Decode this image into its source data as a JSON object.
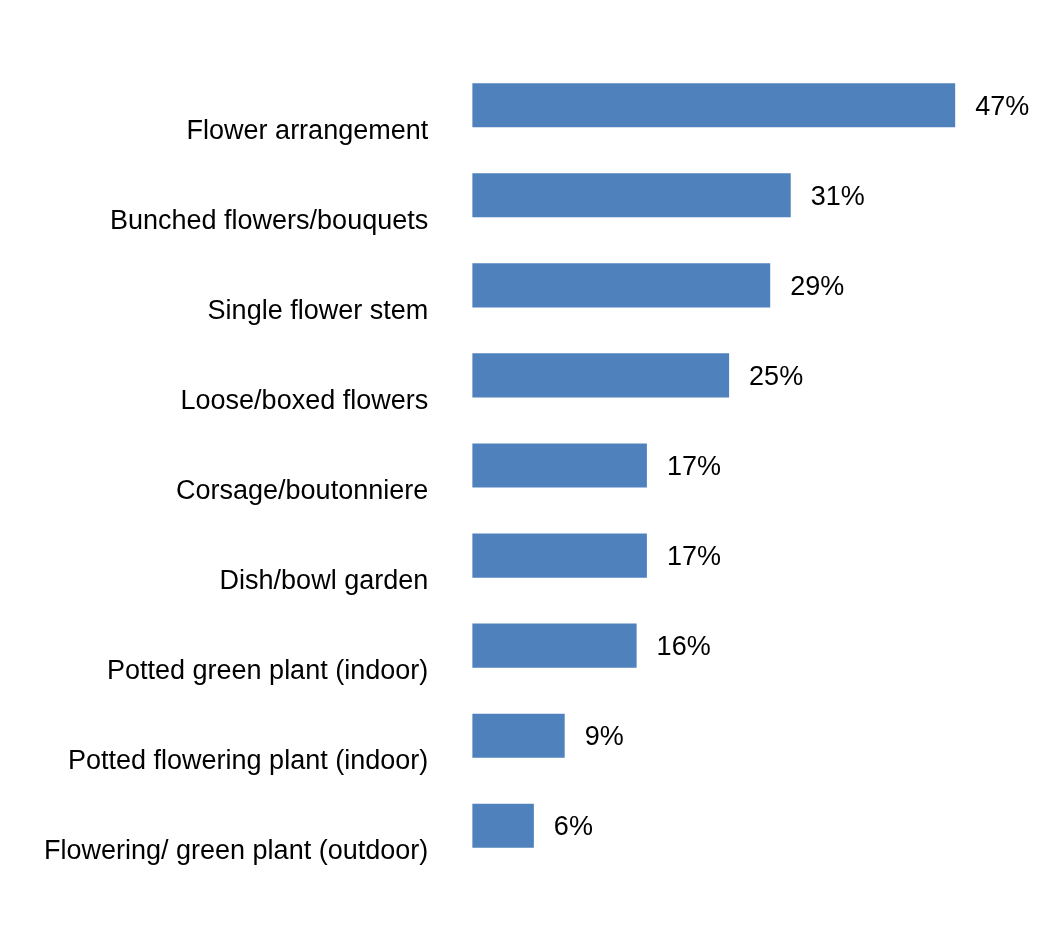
{
  "chart_data": {
    "type": "bar",
    "orientation": "horizontal",
    "categories": [
      "Flower arrangement",
      "Bunched flowers/bouquets",
      "Single flower stem",
      "Loose/boxed flowers",
      "Corsage/boutonniere",
      "Dish/bowl garden",
      "Potted green plant (indoor)",
      "Potted flowering plant (indoor)",
      "Flowering/ green plant (outdoor)"
    ],
    "values": [
      47,
      31,
      29,
      25,
      17,
      17,
      16,
      9,
      6
    ],
    "value_labels": [
      "47%",
      "31%",
      "29%",
      "25%",
      "17%",
      "17%",
      "16%",
      "9%",
      "6%"
    ],
    "color": "#4f81bd"
  }
}
